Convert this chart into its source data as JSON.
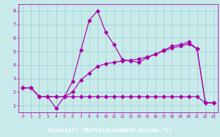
{
  "xlabel": "Windchill (Refroidissement éolien,°C)",
  "background_color": "#c8eaea",
  "grid_color": "#a0cccc",
  "line_color": "#aa00aa",
  "axis_label_bg": "#6600aa",
  "axis_label_fg": "#ffffff",
  "xlim": [
    -0.5,
    23.5
  ],
  "ylim": [
    0.5,
    8.5
  ],
  "xticks": [
    0,
    1,
    2,
    3,
    4,
    5,
    6,
    7,
    8,
    9,
    10,
    11,
    12,
    13,
    14,
    15,
    16,
    17,
    18,
    19,
    20,
    21,
    22,
    23
  ],
  "yticks": [
    1,
    2,
    3,
    4,
    5,
    6,
    7,
    8
  ],
  "series1_x": [
    0,
    1,
    2,
    3,
    4,
    5,
    6,
    7,
    8,
    9,
    10,
    11,
    12,
    13,
    14,
    15,
    16,
    17,
    18,
    19,
    20,
    21,
    22,
    23
  ],
  "series1_y": [
    2.3,
    2.3,
    1.65,
    1.65,
    0.8,
    1.65,
    2.8,
    5.1,
    7.3,
    8.0,
    6.4,
    5.5,
    4.4,
    4.3,
    4.2,
    4.55,
    4.8,
    5.1,
    5.4,
    5.5,
    5.7,
    5.2,
    1.2,
    1.2
  ],
  "series2_x": [
    0,
    1,
    2,
    3,
    4,
    5,
    6,
    7,
    8,
    9,
    10,
    11,
    12,
    13,
    14,
    15,
    16,
    17,
    18,
    19,
    20,
    21,
    22,
    23
  ],
  "series2_y": [
    2.3,
    2.3,
    1.65,
    1.65,
    1.65,
    1.65,
    2.0,
    2.9,
    3.4,
    3.9,
    4.1,
    4.2,
    4.3,
    4.35,
    4.45,
    4.6,
    4.8,
    5.05,
    5.25,
    5.4,
    5.55,
    5.2,
    1.2,
    1.2
  ],
  "series3_x": [
    0,
    1,
    2,
    3,
    4,
    5,
    6,
    7,
    8,
    9,
    10,
    11,
    12,
    13,
    14,
    15,
    16,
    17,
    18,
    19,
    20,
    21,
    22,
    23
  ],
  "series3_y": [
    2.3,
    2.3,
    1.65,
    1.65,
    1.65,
    1.65,
    1.65,
    1.65,
    1.65,
    1.65,
    1.65,
    1.65,
    1.65,
    1.65,
    1.65,
    1.65,
    1.65,
    1.65,
    1.65,
    1.65,
    1.65,
    1.65,
    1.2,
    1.2
  ]
}
